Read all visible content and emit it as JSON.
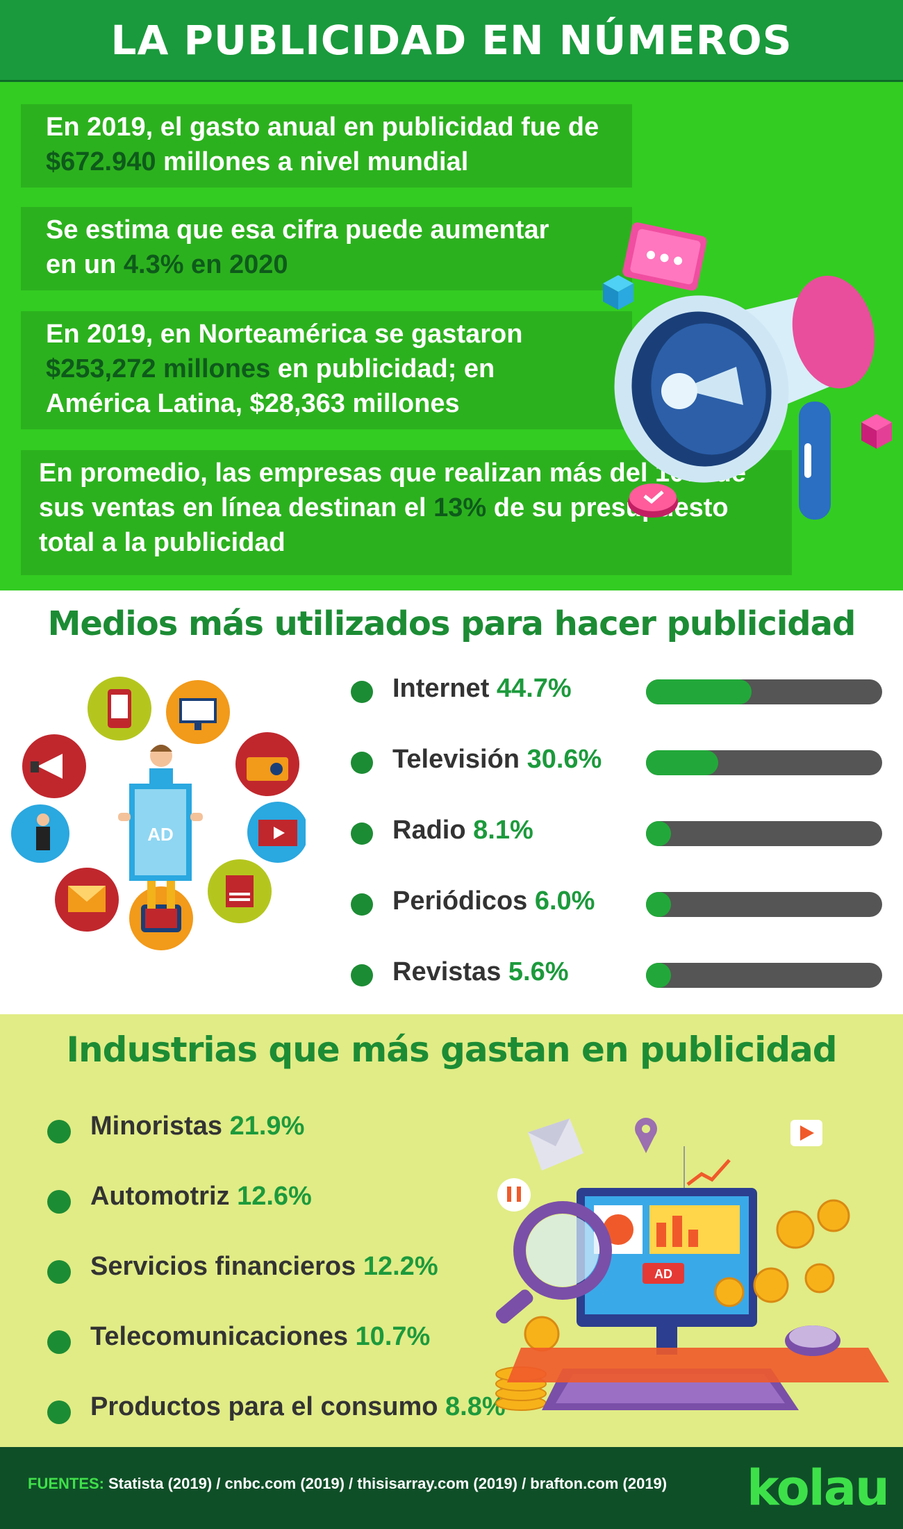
{
  "header": {
    "title": "LA PUBLICIDAD EN NÚMEROS"
  },
  "stats": [
    {
      "parts": [
        "En 2019, el gasto anual en publicidad fue de",
        "$672.940",
        " millones a nivel mundial"
      ]
    },
    {
      "parts": [
        "Se estima que esa cifra puede aumentar",
        "en un ",
        "4.3% en 2020"
      ]
    },
    {
      "parts": [
        "En 2019, en Norteamérica se gastaron",
        "$253,272 millones",
        " en publicidad; en",
        "América Latina, $28,363 millones"
      ]
    },
    {
      "parts": [
        "En promedio, las empresas que realizan más del 10% de",
        " sus ventas en línea destinan el ",
        "13%",
        " de su presupuesto",
        "total a la publicidad"
      ]
    }
  ],
  "media": {
    "title": "Medios más utilizados para hacer publicidad",
    "items": [
      {
        "label": "Internet",
        "percent": "44.7%",
        "value": 44.7
      },
      {
        "label": "Televisión",
        "percent": "30.6%",
        "value": 30.6
      },
      {
        "label": "Radio",
        "percent": "8.1%",
        "value": 8.1
      },
      {
        "label": "Periódicos",
        "percent": "6.0%",
        "value": 6.0
      },
      {
        "label": "Revistas",
        "percent": "5.6%",
        "value": 5.6
      }
    ],
    "icon_badge": "AD",
    "center_badge": "AD"
  },
  "industries": {
    "title": "Industrias que más gastan en publicidad",
    "items": [
      {
        "label": "Minoristas",
        "percent": "21.9%"
      },
      {
        "label": "Automotriz",
        "percent": "12.6%"
      },
      {
        "label": "Servicios financieros",
        "percent": "12.2%"
      },
      {
        "label": "Telecomunicaciones",
        "percent": "10.7%"
      },
      {
        "label": "Productos para el consumo",
        "percent": "8.8%"
      }
    ],
    "screen_badge": "AD"
  },
  "footer": {
    "sources_label": "FUENTES:",
    "sources": "Statista (2019) / cnbc.com (2019) / thisisarray.com (2019) / brafton.com (2019)",
    "logo": "kolau"
  },
  "colors": {
    "dark_green": "#1a9a3c",
    "bright_green": "#33cc22",
    "lime": "#e1ec86",
    "footer": "#0f4f28"
  }
}
